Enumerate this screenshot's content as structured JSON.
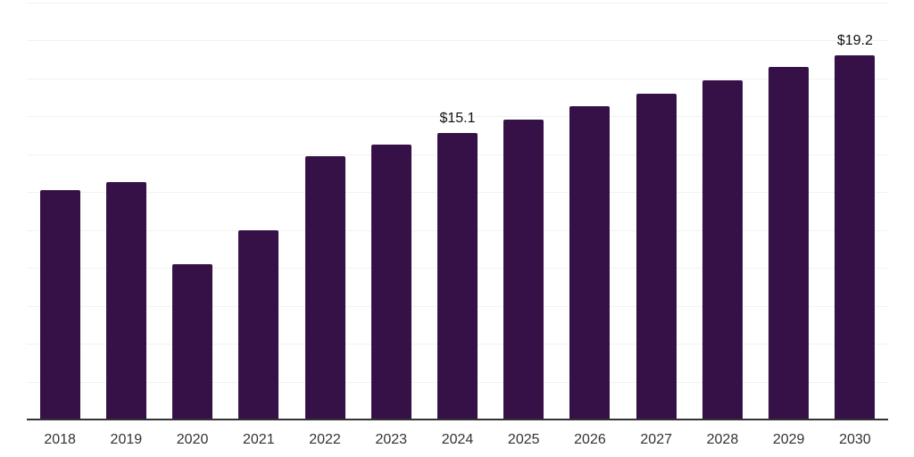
{
  "chart_data": {
    "type": "bar",
    "title": "",
    "xlabel": "",
    "ylabel": "",
    "categories": [
      "2018",
      "2019",
      "2020",
      "2021",
      "2022",
      "2023",
      "2024",
      "2025",
      "2026",
      "2027",
      "2028",
      "2029",
      "2030"
    ],
    "values": [
      12.1,
      12.5,
      8.2,
      10.0,
      13.9,
      14.5,
      15.1,
      15.8,
      16.5,
      17.2,
      17.9,
      18.6,
      19.2
    ],
    "data_labels": [
      {
        "category": "2024",
        "text": "$15.1"
      },
      {
        "category": "2030",
        "text": "$19.2"
      }
    ],
    "ylim": [
      0,
      22
    ],
    "gridline_step": 2,
    "grid": "horizontal",
    "legend_position": "none",
    "y_tick_labels_visible": false,
    "colors": {
      "bar": "#351148",
      "gridline": "#f2f2f2",
      "axis_line": "#333333",
      "x_tick_label": "#333333",
      "data_label": "#111111",
      "background": "#ffffff"
    }
  }
}
